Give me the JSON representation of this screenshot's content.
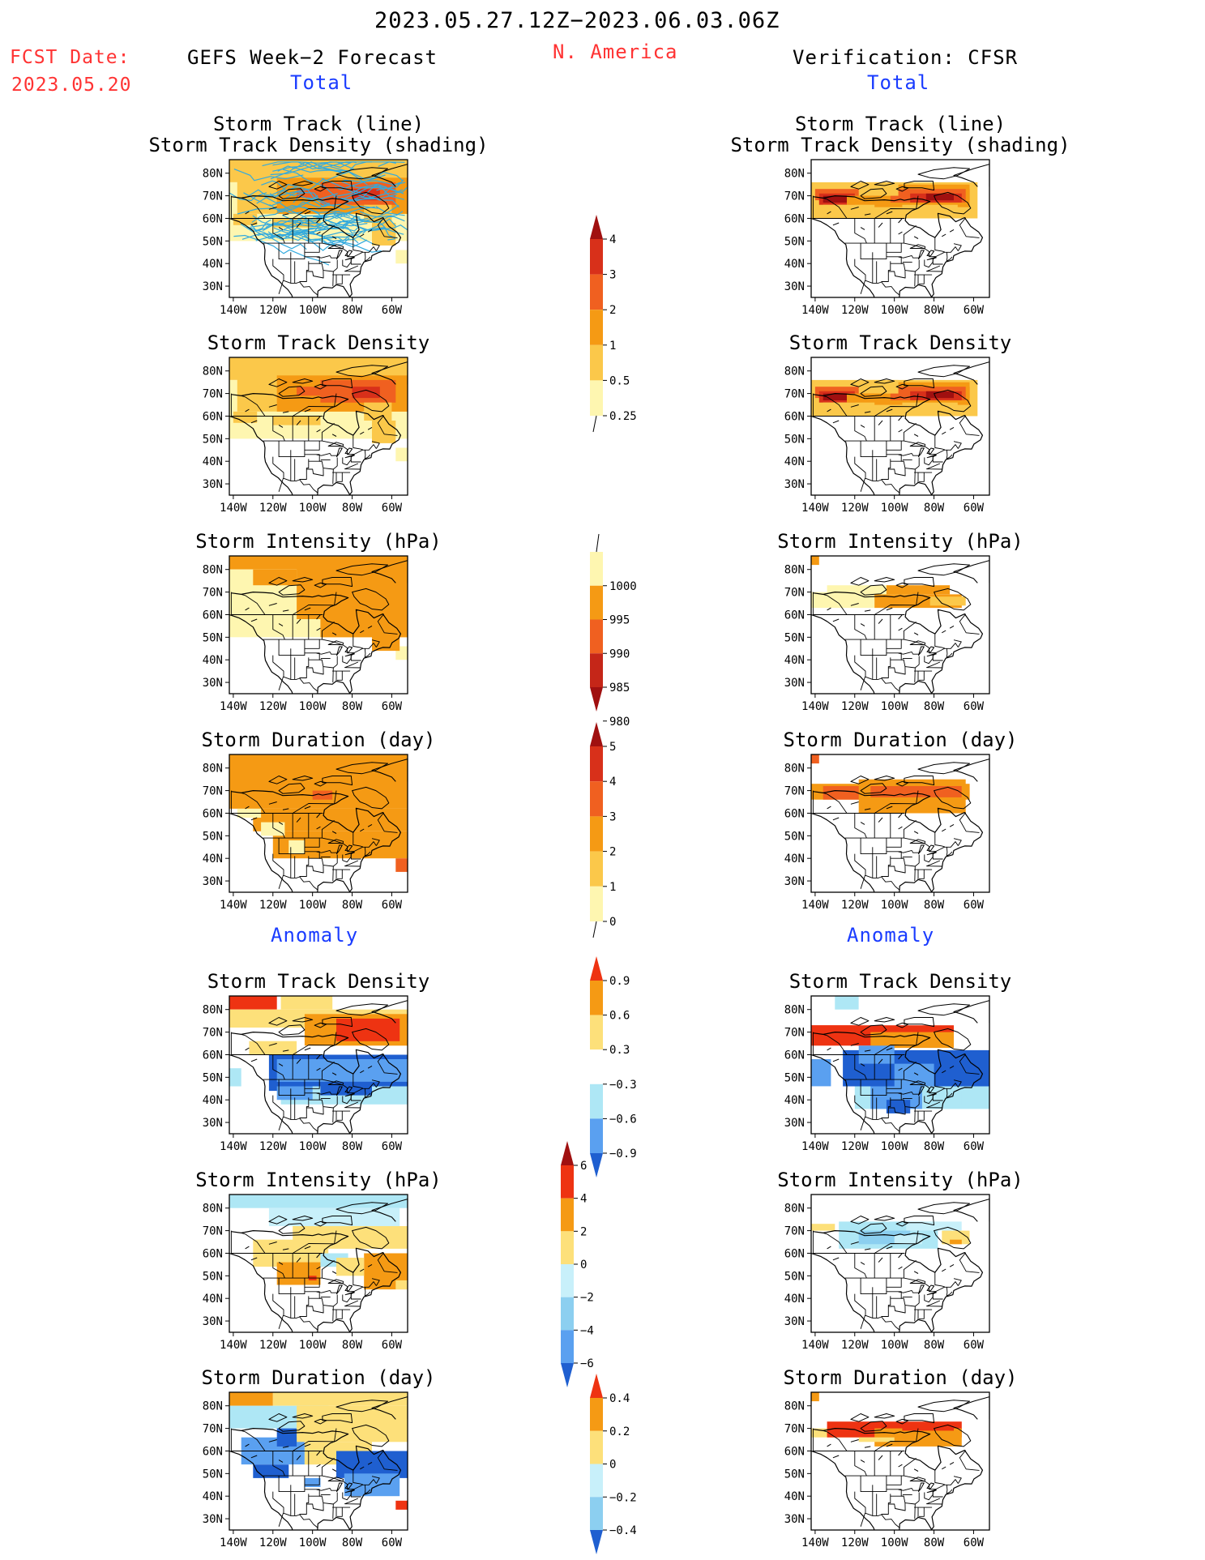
{
  "header": {
    "date_range": "2023.05.27.12Z−2023.06.03.06Z",
    "fcst_label": "FCST Date:",
    "fcst_date": "2023.05.20",
    "region": "N. America",
    "left_title": "GEFS Week−2 Forecast",
    "right_title": "Verification: CFSR"
  },
  "colors": {
    "title_red": "#ff3333",
    "title_blue": "#1a3cff",
    "track_line": "#33aadd"
  },
  "sections": {
    "total": "Total",
    "anomaly": "Anomaly"
  },
  "axis": {
    "lon_labels": [
      "140W",
      "120W",
      "100W",
      "80W",
      "60W"
    ],
    "lat_labels": [
      "80N",
      "70N",
      "60N",
      "50N",
      "40N",
      "30N"
    ]
  },
  "panels": {
    "left": [
      {
        "title": [
          "Storm Track (line)",
          "Storm Track Density (shading)"
        ],
        "field": "track-density-total",
        "track_lines": true
      },
      {
        "title": [
          "Storm Track Density"
        ],
        "field": "track-density-total"
      },
      {
        "title": [
          "Storm Intensity (hPa)"
        ],
        "field": "intensity-total"
      },
      {
        "title": [
          "Storm Duration (day)"
        ],
        "field": "duration-total"
      },
      {
        "title": [
          "Storm Track Density"
        ],
        "field": "track-density-anomaly"
      },
      {
        "title": [
          "Storm Intensity (hPa)"
        ],
        "field": "intensity-anomaly"
      },
      {
        "title": [
          "Storm Duration (day)"
        ],
        "field": "duration-anomaly"
      }
    ],
    "right": [
      {
        "title": [
          "Storm Track (line)",
          "Storm Track Density (shading)"
        ],
        "field": "track-density-total-cfsr"
      },
      {
        "title": [
          "Storm Track Density"
        ],
        "field": "track-density-total-cfsr"
      },
      {
        "title": [
          "Storm Intensity (hPa)"
        ],
        "field": "intensity-total-cfsr"
      },
      {
        "title": [
          "Storm Duration (day)"
        ],
        "field": "duration-total-cfsr"
      },
      {
        "title": [
          "Storm Track Density"
        ],
        "field": "track-density-anomaly-cfsr"
      },
      {
        "title": [
          "Storm Intensity (hPa)"
        ],
        "field": "intensity-anomaly-cfsr"
      },
      {
        "title": [
          "Storm Duration (day)"
        ],
        "field": "duration-anomaly-cfsr"
      }
    ]
  },
  "colorbars": [
    {
      "name": "colorbar-track-density",
      "labels": [
        "4",
        "3",
        "2",
        "1",
        "0.5",
        "0.25"
      ],
      "colors": [
        "#a01010",
        "#d8301a",
        "#f06020",
        "#f59a14",
        "#fbc84a",
        "#fef6b0"
      ],
      "arrow_top": true,
      "arrow_bottom": false
    },
    {
      "name": "colorbar-intensity",
      "labels": [
        "1000",
        "995",
        "990",
        "985",
        "980"
      ],
      "colors": [
        "#fef6b0",
        "#f59a14",
        "#f06020",
        "#c52618",
        "#a01010"
      ],
      "arrow_top": false,
      "arrow_bottom": true
    },
    {
      "name": "colorbar-duration",
      "labels": [
        "5",
        "4",
        "3",
        "2",
        "1",
        "0"
      ],
      "colors": [
        "#a01010",
        "#d8301a",
        "#f06020",
        "#f59a14",
        "#fbc84a",
        "#fef6b0"
      ],
      "arrow_top": true,
      "arrow_bottom": false
    },
    {
      "name": "colorbar-density-anomaly",
      "labels": [
        "0.9",
        "0.6",
        "0.3",
        "−0.3",
        "−0.6",
        "−0.9"
      ],
      "colors": [
        "#ee3312",
        "#f59a14",
        "#fde07a",
        "#ffffff",
        "#aee7f5",
        "#5aa0f0",
        "#1f5fd0"
      ],
      "arrow_top": true,
      "arrow_bottom": true
    },
    {
      "name": "colorbar-intensity-anomaly",
      "labels": [
        "6",
        "4",
        "2",
        "0",
        "−2",
        "−4",
        "−6"
      ],
      "colors": [
        "#a01010",
        "#ee3312",
        "#f59a14",
        "#fde07a",
        "#c8f0fa",
        "#8ccff0",
        "#5aa0f0",
        "#1f5fd0"
      ],
      "arrow_top": true,
      "arrow_bottom": true
    },
    {
      "name": "colorbar-duration-anomaly",
      "labels": [
        "0.4",
        "0.2",
        "0",
        "−0.2",
        "−0.4"
      ],
      "colors": [
        "#ee3312",
        "#f59a14",
        "#fde07a",
        "#c8f0fa",
        "#8ccff0",
        "#1f5fd0"
      ],
      "arrow_top": true,
      "arrow_bottom": true
    }
  ]
}
